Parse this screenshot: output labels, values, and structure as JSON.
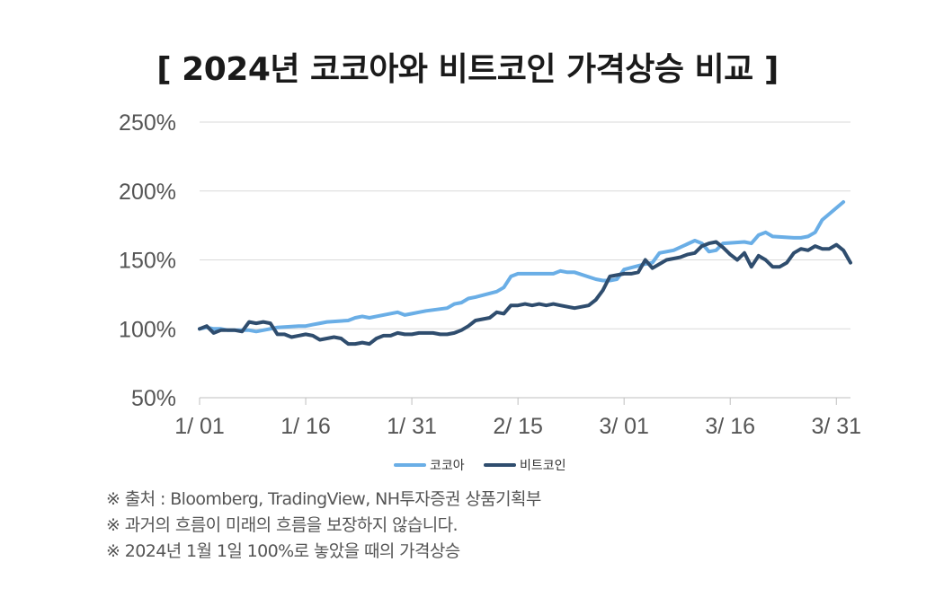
{
  "chart_data": {
    "type": "line",
    "title": "[ 2024년 코코아와 비트코인 가격상승 비교 ]",
    "y_ticks": [
      "250%",
      "200%",
      "150%",
      "100%",
      "50%"
    ],
    "x_ticks": [
      "1/ 01",
      "1/ 16",
      "1/ 31",
      "2/ 15",
      "3/ 01",
      "3/ 16",
      "3/ 31"
    ],
    "ylim": [
      50,
      250
    ],
    "xlim": [
      "2024-01-01",
      "2024-04-02"
    ],
    "grid": "horizontal",
    "legend_position": "bottom",
    "series": [
      {
        "name": "코코아",
        "color": "#6aaee6",
        "points": [
          [
            "2024-01-01",
            100
          ],
          [
            "2024-01-02",
            101
          ],
          [
            "2024-01-03",
            100
          ],
          [
            "2024-01-04",
            100
          ],
          [
            "2024-01-05",
            99
          ],
          [
            "2024-01-08",
            99
          ],
          [
            "2024-01-09",
            98
          ],
          [
            "2024-01-10",
            99
          ],
          [
            "2024-01-11",
            100
          ],
          [
            "2024-01-12",
            101
          ],
          [
            "2024-01-15",
            102
          ],
          [
            "2024-01-16",
            102
          ],
          [
            "2024-01-17",
            103
          ],
          [
            "2024-01-18",
            104
          ],
          [
            "2024-01-19",
            105
          ],
          [
            "2024-01-22",
            106
          ],
          [
            "2024-01-23",
            108
          ],
          [
            "2024-01-24",
            109
          ],
          [
            "2024-01-25",
            108
          ],
          [
            "2024-01-26",
            109
          ],
          [
            "2024-01-29",
            112
          ],
          [
            "2024-01-30",
            110
          ],
          [
            "2024-01-31",
            111
          ],
          [
            "2024-02-01",
            112
          ],
          [
            "2024-02-02",
            113
          ],
          [
            "2024-02-05",
            115
          ],
          [
            "2024-02-06",
            118
          ],
          [
            "2024-02-07",
            119
          ],
          [
            "2024-02-08",
            122
          ],
          [
            "2024-02-09",
            123
          ],
          [
            "2024-02-12",
            127
          ],
          [
            "2024-02-13",
            130
          ],
          [
            "2024-02-14",
            138
          ],
          [
            "2024-02-15",
            140
          ],
          [
            "2024-02-16",
            140
          ],
          [
            "2024-02-19",
            140
          ],
          [
            "2024-02-20",
            140
          ],
          [
            "2024-02-21",
            142
          ],
          [
            "2024-02-22",
            141
          ],
          [
            "2024-02-23",
            141
          ],
          [
            "2024-02-26",
            136
          ],
          [
            "2024-02-27",
            135
          ],
          [
            "2024-02-28",
            135
          ],
          [
            "2024-02-29",
            136
          ],
          [
            "2024-03-01",
            143
          ],
          [
            "2024-03-04",
            147
          ],
          [
            "2024-03-05",
            148
          ],
          [
            "2024-03-06",
            155
          ],
          [
            "2024-03-07",
            156
          ],
          [
            "2024-03-08",
            157
          ],
          [
            "2024-03-11",
            164
          ],
          [
            "2024-03-12",
            162
          ],
          [
            "2024-03-13",
            156
          ],
          [
            "2024-03-14",
            157
          ],
          [
            "2024-03-15",
            162
          ],
          [
            "2024-03-18",
            163
          ],
          [
            "2024-03-19",
            162
          ],
          [
            "2024-03-20",
            168
          ],
          [
            "2024-03-21",
            170
          ],
          [
            "2024-03-22",
            167
          ],
          [
            "2024-03-25",
            166
          ],
          [
            "2024-03-26",
            166
          ],
          [
            "2024-03-27",
            167
          ],
          [
            "2024-03-28",
            170
          ],
          [
            "2024-03-29",
            179
          ],
          [
            "2024-04-01",
            192
          ]
        ]
      },
      {
        "name": "비트코인",
        "color": "#2f4d6e",
        "points": [
          [
            "2024-01-01",
            100
          ],
          [
            "2024-01-02",
            102
          ],
          [
            "2024-01-03",
            97
          ],
          [
            "2024-01-04",
            99
          ],
          [
            "2024-01-05",
            99
          ],
          [
            "2024-01-06",
            99
          ],
          [
            "2024-01-07",
            98
          ],
          [
            "2024-01-08",
            105
          ],
          [
            "2024-01-09",
            104
          ],
          [
            "2024-01-10",
            105
          ],
          [
            "2024-01-11",
            104
          ],
          [
            "2024-01-12",
            96
          ],
          [
            "2024-01-13",
            96
          ],
          [
            "2024-01-14",
            94
          ],
          [
            "2024-01-15",
            95
          ],
          [
            "2024-01-16",
            96
          ],
          [
            "2024-01-17",
            95
          ],
          [
            "2024-01-18",
            92
          ],
          [
            "2024-01-19",
            93
          ],
          [
            "2024-01-20",
            94
          ],
          [
            "2024-01-21",
            93
          ],
          [
            "2024-01-22",
            89
          ],
          [
            "2024-01-23",
            89
          ],
          [
            "2024-01-24",
            90
          ],
          [
            "2024-01-25",
            89
          ],
          [
            "2024-01-26",
            93
          ],
          [
            "2024-01-27",
            95
          ],
          [
            "2024-01-28",
            95
          ],
          [
            "2024-01-29",
            97
          ],
          [
            "2024-01-30",
            96
          ],
          [
            "2024-01-31",
            96
          ],
          [
            "2024-02-01",
            97
          ],
          [
            "2024-02-02",
            97
          ],
          [
            "2024-02-03",
            97
          ],
          [
            "2024-02-04",
            96
          ],
          [
            "2024-02-05",
            96
          ],
          [
            "2024-02-06",
            97
          ],
          [
            "2024-02-07",
            99
          ],
          [
            "2024-02-08",
            102
          ],
          [
            "2024-02-09",
            106
          ],
          [
            "2024-02-10",
            107
          ],
          [
            "2024-02-11",
            108
          ],
          [
            "2024-02-12",
            112
          ],
          [
            "2024-02-13",
            111
          ],
          [
            "2024-02-14",
            117
          ],
          [
            "2024-02-15",
            117
          ],
          [
            "2024-02-16",
            118
          ],
          [
            "2024-02-17",
            117
          ],
          [
            "2024-02-18",
            118
          ],
          [
            "2024-02-19",
            117
          ],
          [
            "2024-02-20",
            118
          ],
          [
            "2024-02-21",
            117
          ],
          [
            "2024-02-22",
            116
          ],
          [
            "2024-02-23",
            115
          ],
          [
            "2024-02-24",
            116
          ],
          [
            "2024-02-25",
            117
          ],
          [
            "2024-02-26",
            121
          ],
          [
            "2024-02-27",
            128
          ],
          [
            "2024-02-28",
            138
          ],
          [
            "2024-02-29",
            139
          ],
          [
            "2024-03-01",
            140
          ],
          [
            "2024-03-02",
            140
          ],
          [
            "2024-03-03",
            141
          ],
          [
            "2024-03-04",
            150
          ],
          [
            "2024-03-05",
            144
          ],
          [
            "2024-03-06",
            147
          ],
          [
            "2024-03-07",
            150
          ],
          [
            "2024-03-08",
            151
          ],
          [
            "2024-03-09",
            152
          ],
          [
            "2024-03-10",
            154
          ],
          [
            "2024-03-11",
            155
          ],
          [
            "2024-03-12",
            160
          ],
          [
            "2024-03-13",
            162
          ],
          [
            "2024-03-14",
            163
          ],
          [
            "2024-03-15",
            159
          ],
          [
            "2024-03-16",
            154
          ],
          [
            "2024-03-17",
            150
          ],
          [
            "2024-03-18",
            155
          ],
          [
            "2024-03-19",
            145
          ],
          [
            "2024-03-20",
            153
          ],
          [
            "2024-03-21",
            150
          ],
          [
            "2024-03-22",
            145
          ],
          [
            "2024-03-23",
            145
          ],
          [
            "2024-03-24",
            148
          ],
          [
            "2024-03-25",
            155
          ],
          [
            "2024-03-26",
            158
          ],
          [
            "2024-03-27",
            157
          ],
          [
            "2024-03-28",
            160
          ],
          [
            "2024-03-29",
            158
          ],
          [
            "2024-03-30",
            158
          ],
          [
            "2024-03-31",
            161
          ],
          [
            "2024-04-01",
            157
          ],
          [
            "2024-04-02",
            148
          ]
        ]
      }
    ]
  },
  "notes": [
    "※ 출처 : Bloomberg, TradingView, NH투자증권 상품기획부",
    "※ 과거의 흐름이 미래의 흐름을 보장하지 않습니다.",
    "※ 2024년 1월 1일 100%로 놓았을 때의 가격상승"
  ]
}
